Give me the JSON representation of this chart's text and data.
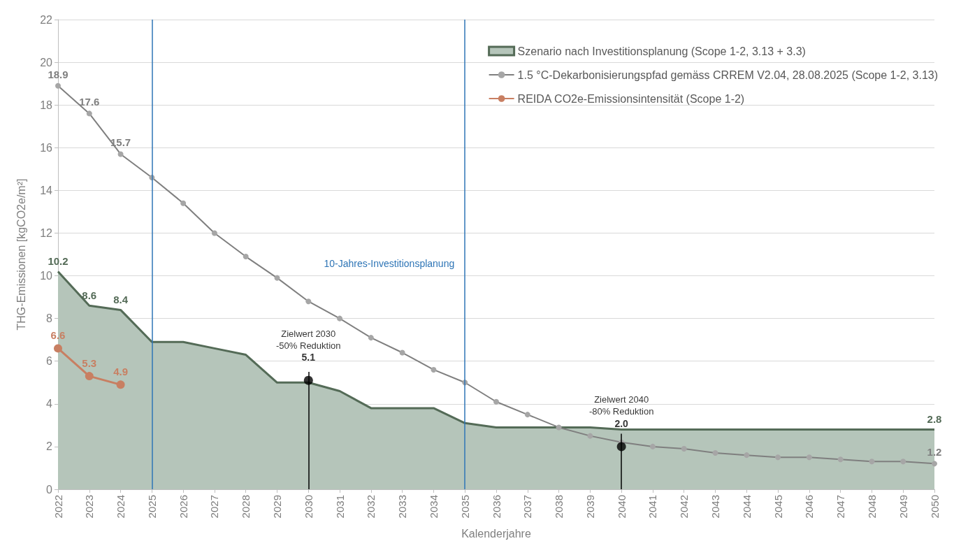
{
  "chart_data": {
    "type": "area",
    "xlabel": "Kalenderjahre",
    "ylabel": "THG-Emissionen [kgCO2e/m²]",
    "categories": [
      "2022",
      "2023",
      "2024",
      "2025",
      "2026",
      "2027",
      "2028",
      "2029",
      "2030",
      "2031",
      "2032",
      "2033",
      "2034",
      "2035",
      "2036",
      "2037",
      "2038",
      "2039",
      "2040",
      "2041",
      "2042",
      "2043",
      "2044",
      "2045",
      "2046",
      "2047",
      "2048",
      "2049",
      "2050"
    ],
    "series": [
      {
        "name": "Szenario nach Investitionsplanung (Scope 1-2, 3.13 + 3.3)",
        "color": "#546b57",
        "values": [
          10.2,
          8.6,
          8.4,
          6.9,
          6.9,
          6.6,
          6.3,
          5.0,
          5.0,
          4.6,
          3.8,
          3.8,
          3.8,
          3.1,
          2.9,
          2.9,
          2.9,
          2.9,
          2.8,
          2.8,
          2.8,
          2.8,
          2.8,
          2.8,
          2.8,
          2.8,
          2.8,
          2.8,
          2.8
        ],
        "value_labels": [
          "10.2",
          "8.6",
          "8.4",
          null,
          null,
          null,
          null,
          null,
          null,
          null,
          null,
          null,
          null,
          null,
          null,
          null,
          null,
          null,
          null,
          null,
          null,
          null,
          null,
          null,
          null,
          null,
          null,
          null,
          "2.8"
        ]
      },
      {
        "name": "1.5 °C-Dekarbonisierungspfad gemäss CRREM V2.04, 28.08.2025 (Scope 1-2, 3.13)",
        "type": "line",
        "color": "#7f7f7f",
        "marker": "circle",
        "values": [
          18.9,
          17.6,
          15.7,
          14.6,
          13.4,
          12.0,
          10.9,
          9.9,
          8.8,
          8.0,
          7.1,
          6.4,
          5.6,
          5.0,
          4.1,
          3.5,
          2.9,
          2.5,
          2.2,
          2.0,
          1.9,
          1.7,
          1.6,
          1.5,
          1.5,
          1.4,
          1.3,
          1.3,
          1.2
        ],
        "value_labels": [
          "18.9",
          "17.6",
          "15.7",
          null,
          null,
          null,
          null,
          null,
          null,
          null,
          null,
          null,
          null,
          null,
          null,
          null,
          null,
          null,
          null,
          null,
          null,
          null,
          null,
          null,
          null,
          null,
          null,
          null,
          "1.2"
        ]
      },
      {
        "name": "REIDA CO2e-Emissionsintensität (Scope 1-2)",
        "type": "line",
        "color": "#c87f62",
        "marker": "circle",
        "values": [
          6.6,
          5.3,
          4.9,
          null,
          null,
          null,
          null,
          null,
          null,
          null,
          null,
          null,
          null,
          null,
          null,
          null,
          null,
          null,
          null,
          null,
          null,
          null,
          null,
          null,
          null,
          null,
          null,
          null,
          null
        ],
        "value_labels": [
          "6.6",
          "5.3",
          "4.9",
          null,
          null,
          null,
          null,
          null,
          null,
          null,
          null,
          null,
          null,
          null,
          null,
          null,
          null,
          null,
          null,
          null,
          null,
          null,
          null,
          null,
          null,
          null,
          null,
          null,
          null
        ]
      },
      {
        "type": "scatter",
        "color": "#000000",
        "marker": "circle",
        "values": [
          null,
          null,
          null,
          null,
          null,
          null,
          null,
          null,
          5.1,
          null,
          null,
          null,
          null,
          null,
          null,
          null,
          null,
          null,
          2.0,
          null,
          null,
          null,
          null,
          null,
          null,
          null,
          null,
          null,
          null
        ],
        "errors": [
          null,
          null,
          null,
          null,
          null,
          null,
          null,
          null,
          [
            0,
            5.5
          ],
          null,
          null,
          null,
          null,
          null,
          null,
          null,
          null,
          null,
          [
            0,
            2.6
          ],
          null,
          null,
          null,
          null,
          null,
          null,
          null,
          null,
          null,
          null
        ],
        "value_labels": [
          null,
          null,
          null,
          null,
          null,
          null,
          null,
          null,
          "5.1",
          null,
          null,
          null,
          null,
          null,
          null,
          null,
          null,
          null,
          "2.0",
          null,
          null,
          null,
          null,
          null,
          null,
          null,
          null,
          null,
          null
        ]
      }
    ],
    "annotations": [
      "Zielwert 2030\n-50% Reduktion",
      "Zielwert 2040\n-80% Reduktion"
    ],
    "ref_lines": [
      {
        "axis": "x",
        "value": "2025",
        "color": "#2e75b6"
      },
      {
        "axis": "x",
        "value": "2035",
        "color": "#2e75b6",
        "label": "10-Jahres-Investitionsplanung"
      }
    ],
    "ylim": [
      0,
      22
    ],
    "yticks": [
      0,
      2,
      4,
      6,
      8,
      10,
      12,
      14,
      16,
      18,
      20,
      22
    ],
    "grid": "y",
    "legend": "top right"
  }
}
